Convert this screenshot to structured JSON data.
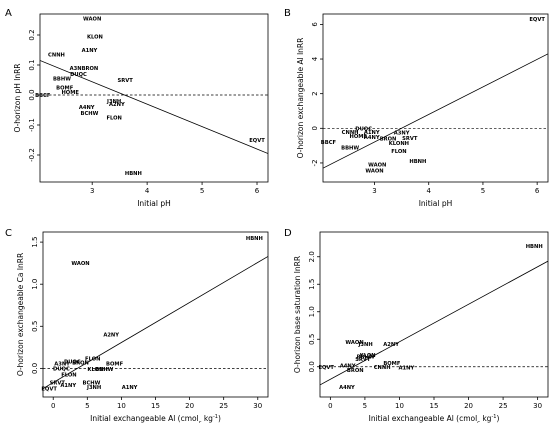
{
  "chart_data": [
    {
      "panel": "A",
      "type": "scatter",
      "xlabel": "Initial pH",
      "ylabel": "O-horizon pH lnRR",
      "xlim": [
        2.05,
        6.2
      ],
      "ylim": [
        -0.29,
        0.27
      ],
      "xticks": [
        3,
        4,
        5,
        6
      ],
      "yticks": [
        -0.2,
        -0.1,
        0.0,
        0.1,
        0.2
      ],
      "ytick_labels": [
        "-0.2",
        "-0.1",
        "0.0",
        "0.1",
        "0.2"
      ],
      "zero_line": 0,
      "regression": {
        "x": [
          2.05,
          6.2
        ],
        "y": [
          0.115,
          -0.195
        ]
      },
      "points": [
        {
          "label": "WAON",
          "x": 3.0,
          "y": 0.255
        },
        {
          "label": "KLON",
          "x": 3.05,
          "y": 0.195
        },
        {
          "label": "A1NY",
          "x": 2.95,
          "y": 0.15
        },
        {
          "label": "CNNH",
          "x": 2.35,
          "y": 0.135
        },
        {
          "label": "A3NBRON",
          "x": 2.85,
          "y": 0.09
        },
        {
          "label": "DUQC",
          "x": 2.75,
          "y": 0.07
        },
        {
          "label": "BBHW",
          "x": 2.45,
          "y": 0.055
        },
        {
          "label": "SRVT",
          "x": 3.6,
          "y": 0.05
        },
        {
          "label": "BOMF",
          "x": 2.5,
          "y": 0.025
        },
        {
          "label": "HOME",
          "x": 2.6,
          "y": 0.01
        },
        {
          "label": "BBCF",
          "x": 2.1,
          "y": 0.0
        },
        {
          "label": "J3NH",
          "x": 3.4,
          "y": -0.02
        },
        {
          "label": "A2NY",
          "x": 3.45,
          "y": -0.03
        },
        {
          "label": "A4NY",
          "x": 2.9,
          "y": -0.04
        },
        {
          "label": "BCHW",
          "x": 2.95,
          "y": -0.06
        },
        {
          "label": "FLON",
          "x": 3.4,
          "y": -0.075
        },
        {
          "label": "EQVT",
          "x": 6.0,
          "y": -0.15
        },
        {
          "label": "HBNH",
          "x": 3.75,
          "y": -0.26
        }
      ]
    },
    {
      "panel": "B",
      "type": "scatter",
      "xlabel": "Initial pH",
      "ylabel": "O-horizon exchangeable Al lnRR",
      "xlim": [
        2.05,
        6.2
      ],
      "ylim": [
        -3.1,
        6.6
      ],
      "xticks": [
        3,
        4,
        5,
        6
      ],
      "yticks": [
        -2,
        0,
        2,
        4,
        6
      ],
      "ytick_labels": [
        "-2",
        "0",
        "2",
        "4",
        "6"
      ],
      "zero_line": 0,
      "regression": {
        "x": [
          2.05,
          6.2
        ],
        "y": [
          -2.3,
          4.3
        ]
      },
      "points": [
        {
          "label": "EQVT",
          "x": 6.0,
          "y": 6.3
        },
        {
          "label": "DUQC",
          "x": 2.8,
          "y": 0.0
        },
        {
          "label": "CNNH",
          "x": 2.55,
          "y": -0.2
        },
        {
          "label": "A1NY",
          "x": 2.95,
          "y": -0.2
        },
        {
          "label": "HOME",
          "x": 2.7,
          "y": -0.45
        },
        {
          "label": "A4NY",
          "x": 2.95,
          "y": -0.5
        },
        {
          "label": "BRON",
          "x": 3.25,
          "y": -0.6
        },
        {
          "label": "A3NY",
          "x": 3.5,
          "y": -0.25
        },
        {
          "label": "SRVT",
          "x": 3.65,
          "y": -0.55
        },
        {
          "label": "BBCF",
          "x": 2.15,
          "y": -0.8
        },
        {
          "label": "KLONH",
          "x": 3.45,
          "y": -0.85
        },
        {
          "label": "BBHW",
          "x": 2.55,
          "y": -1.1
        },
        {
          "label": "FLON",
          "x": 3.45,
          "y": -1.3
        },
        {
          "label": "HBNH",
          "x": 3.8,
          "y": -1.9
        },
        {
          "label": "WAON",
          "x": 3.05,
          "y": -2.1
        },
        {
          "label": "WAON",
          "x": 3.0,
          "y": -2.45
        }
      ]
    },
    {
      "panel": "C",
      "type": "scatter",
      "xlabel": "Initial exchangeable Al (cmolc kg-1)",
      "ylabel": "O-horizon exchangeable Ca lnRR",
      "xlim": [
        -1.5,
        31.5
      ],
      "ylim": [
        -0.34,
        1.62
      ],
      "xticks": [
        0,
        5,
        10,
        15,
        20,
        25,
        30
      ],
      "yticks": [
        0.0,
        0.5,
        1.0,
        1.5
      ],
      "ytick_labels": [
        "0.0",
        "0.5",
        "1.0",
        "1.5"
      ],
      "zero_line": 0,
      "regression": {
        "x": [
          -1.5,
          31.5
        ],
        "y": [
          -0.24,
          1.33
        ]
      },
      "points": [
        {
          "label": "HBNH",
          "x": 29.5,
          "y": 1.55
        },
        {
          "label": "WAON",
          "x": 4.0,
          "y": 1.25
        },
        {
          "label": "A2NY",
          "x": 8.5,
          "y": 0.4
        },
        {
          "label": "FLON",
          "x": 5.8,
          "y": 0.12
        },
        {
          "label": "A3NY",
          "x": 1.3,
          "y": 0.06
        },
        {
          "label": "DUQC",
          "x": 2.8,
          "y": 0.08
        },
        {
          "label": "BRON",
          "x": 4.0,
          "y": 0.07
        },
        {
          "label": "BOMF",
          "x": 9.0,
          "y": 0.06
        },
        {
          "label": "DUQC",
          "x": 1.2,
          "y": 0.0
        },
        {
          "label": "KLONH",
          "x": 6.5,
          "y": -0.01
        },
        {
          "label": "BBHW",
          "x": 7.5,
          "y": -0.01
        },
        {
          "label": "FLON",
          "x": 2.3,
          "y": -0.07
        },
        {
          "label": "SRVT",
          "x": 0.6,
          "y": -0.17
        },
        {
          "label": "A1NY",
          "x": 2.2,
          "y": -0.2
        },
        {
          "label": "BCHW",
          "x": 5.6,
          "y": -0.17
        },
        {
          "label": "J3NH",
          "x": 6.0,
          "y": -0.22
        },
        {
          "label": "EQVT",
          "x": -0.6,
          "y": -0.24
        },
        {
          "label": "A1NY",
          "x": 11.2,
          "y": -0.22
        }
      ]
    },
    {
      "panel": "D",
      "type": "scatter",
      "xlabel": "Initial exchangeable Al (cmolc kg-1)",
      "ylabel": "O-horizon base saturation lnRR",
      "xlim": [
        -1.5,
        31.5
      ],
      "ylim": [
        -0.55,
        2.45
      ],
      "xticks": [
        0,
        5,
        10,
        15,
        20,
        25,
        30
      ],
      "yticks": [
        0.0,
        0.5,
        1.0,
        1.5,
        2.0
      ],
      "ytick_labels": [
        "0.0",
        "0.5",
        "1.0",
        "1.5",
        "2.0"
      ],
      "zero_line": 0,
      "regression": {
        "x": [
          -1.5,
          31.5
        ],
        "y": [
          -0.33,
          1.92
        ]
      },
      "points": [
        {
          "label": "HBNH",
          "x": 29.5,
          "y": 2.2
        },
        {
          "label": "WAON",
          "x": 3.5,
          "y": 0.45
        },
        {
          "label": "J3NH",
          "x": 5.1,
          "y": 0.41
        },
        {
          "label": "A2NY",
          "x": 8.8,
          "y": 0.41
        },
        {
          "label": "KLON",
          "x": 5.4,
          "y": 0.21
        },
        {
          "label": "BBHW",
          "x": 5.1,
          "y": 0.19
        },
        {
          "label": "SRVT",
          "x": 4.7,
          "y": 0.14
        },
        {
          "label": "BOMF",
          "x": 8.9,
          "y": 0.07
        },
        {
          "label": "CNNH",
          "x": 7.5,
          "y": 0.0
        },
        {
          "label": "EQVT",
          "x": -0.6,
          "y": 0.0
        },
        {
          "label": "A4NY",
          "x": 2.5,
          "y": 0.02
        },
        {
          "label": "BRON",
          "x": 3.6,
          "y": -0.06
        },
        {
          "label": "A1NY",
          "x": 11.0,
          "y": -0.01
        },
        {
          "label": "A4NY",
          "x": 2.4,
          "y": -0.37
        }
      ]
    }
  ]
}
